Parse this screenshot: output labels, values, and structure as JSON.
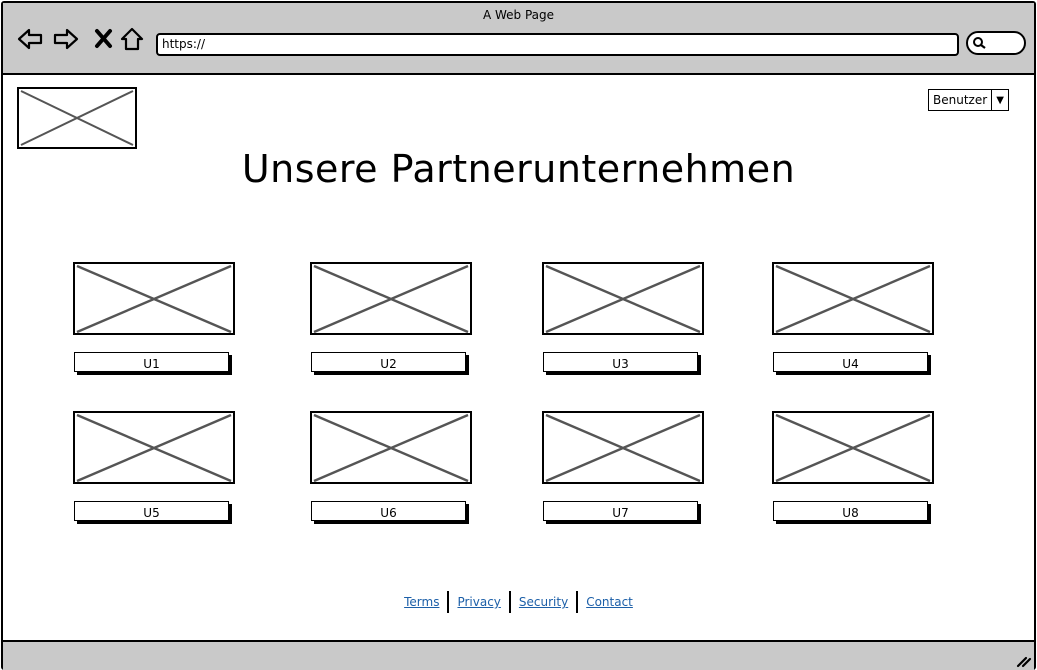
{
  "window": {
    "title": "A Web Page"
  },
  "browser": {
    "url": "https://",
    "icons": [
      "back-arrow-icon",
      "forward-arrow-icon",
      "close-x-icon",
      "home-icon",
      "search-icon"
    ]
  },
  "user_menu": {
    "label": "Benutzer"
  },
  "page": {
    "title": "Unsere Partnerunternehmen"
  },
  "companies": [
    {
      "label": "U1"
    },
    {
      "label": "U2"
    },
    {
      "label": "U3"
    },
    {
      "label": "U4"
    },
    {
      "label": "U5"
    },
    {
      "label": "U6"
    },
    {
      "label": "U7"
    },
    {
      "label": "U8"
    }
  ],
  "footer": {
    "links": [
      {
        "label": "Terms"
      },
      {
        "label": "Privacy"
      },
      {
        "label": "Security"
      },
      {
        "label": "Contact"
      }
    ],
    "link_color": "#1c5fa8"
  },
  "colors": {
    "chrome": "#c9c9c9",
    "placeholder_stroke": "#555555"
  }
}
